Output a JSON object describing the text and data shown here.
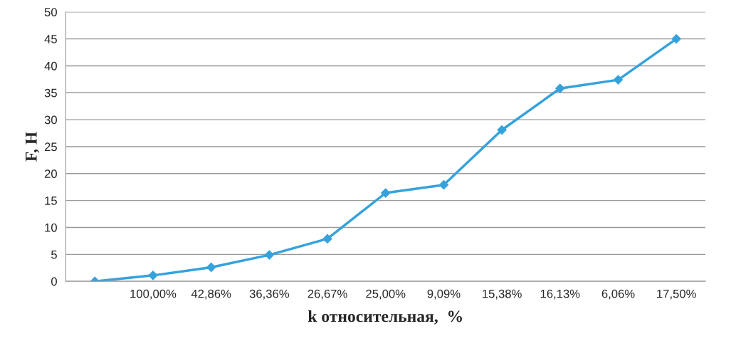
{
  "chart_data": {
    "type": "line",
    "xlabel": "k относительная,  %",
    "ylabel": "F, Н",
    "categories": [
      null,
      "100,00%",
      "42,86%",
      "36,36%",
      "26,67%",
      "25,00%",
      "9,09%",
      "15,38%",
      "16,13%",
      "6,06%",
      "17,50%"
    ],
    "series": [
      {
        "color": "#36a2dc",
        "values": [
          0,
          1.1,
          2.6,
          4.9,
          7.9,
          16.4,
          17.9,
          28.1,
          35.8,
          37.4,
          45
        ]
      }
    ],
    "ylim": [
      0,
      50
    ],
    "yticks": [
      0,
      5,
      10,
      15,
      20,
      25,
      30,
      35,
      40,
      45,
      50
    ],
    "grid": "y",
    "marker": "diamond",
    "line_style": "solid"
  }
}
